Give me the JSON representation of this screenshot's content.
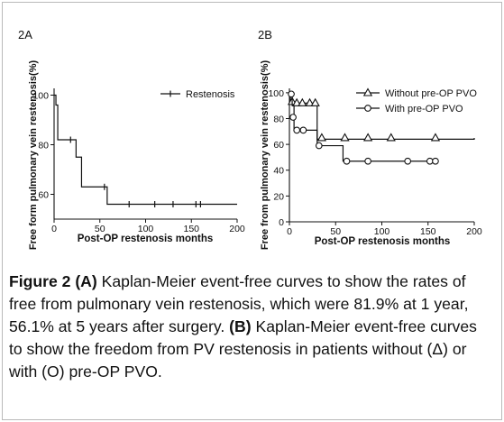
{
  "chart_data": [
    {
      "type": "line",
      "panel_label": "2A",
      "xlabel": "Post-OP restenosis months",
      "ylabel": "Free form pulmonary vein restenosis(%)",
      "xlim": [
        0,
        200
      ],
      "ylim": [
        50,
        102
      ],
      "xticks": [
        "0",
        "50",
        "100",
        "150",
        "200"
      ],
      "yticks": [
        "60",
        "80",
        "100"
      ],
      "legend_position": "top-right",
      "series": [
        {
          "name": "Restenosis",
          "marker": "tick",
          "steps": [
            [
              0,
              100
            ],
            [
              2,
              96
            ],
            [
              4,
              82
            ],
            [
              24,
              75
            ],
            [
              30,
              63
            ],
            [
              58,
              56
            ],
            [
              200,
              56
            ]
          ],
          "censored": [
            [
              18,
              82
            ],
            [
              55,
              63
            ],
            [
              82,
              56
            ],
            [
              110,
              56
            ],
            [
              130,
              56
            ],
            [
              155,
              56
            ],
            [
              160,
              56
            ]
          ]
        }
      ]
    },
    {
      "type": "line",
      "panel_label": "2B",
      "xlabel": "Post-OP restenosis months",
      "ylabel": "Free from pulmonary vein restenosis(%)",
      "xlim": [
        0,
        200
      ],
      "ylim": [
        0,
        102
      ],
      "xticks": [
        "0",
        "50",
        "100",
        "150",
        "200"
      ],
      "yticks": [
        "0",
        "20",
        "40",
        "60",
        "80",
        "100"
      ],
      "legend_position": "top-right",
      "series": [
        {
          "name": "Without pre-OP PVO",
          "marker": "triangle",
          "steps": [
            [
              0,
              100
            ],
            [
              1,
              92
            ],
            [
              30,
              64
            ],
            [
              200,
              65
            ]
          ],
          "censored": [
            [
              3,
              93
            ],
            [
              8,
              92
            ],
            [
              14,
              92
            ],
            [
              22,
              92
            ],
            [
              28,
              92
            ],
            [
              35,
              65
            ],
            [
              60,
              65
            ],
            [
              85,
              65
            ],
            [
              110,
              65
            ],
            [
              158,
              65
            ]
          ]
        },
        {
          "name": "With pre-OP PVO",
          "marker": "circle",
          "steps": [
            [
              0,
              100
            ],
            [
              3,
              90
            ],
            [
              5,
              71
            ],
            [
              30,
              59
            ],
            [
              58,
              47
            ],
            [
              160,
              47
            ]
          ],
          "censored": [
            [
              2,
              99
            ],
            [
              4,
              81
            ],
            [
              8,
              71
            ],
            [
              15,
              71
            ],
            [
              32,
              59
            ],
            [
              62,
              47
            ],
            [
              85,
              47
            ],
            [
              128,
              47
            ],
            [
              152,
              47
            ],
            [
              158,
              47
            ]
          ]
        }
      ]
    }
  ],
  "caption": {
    "a_label": "Figure 2 (A)",
    "a_text": " Kaplan-Meier event-free curves to show the rates of free from pulmonary vein restenosis, which were 81.9% at 1 year, 56.1% at 5 years after surgery. ",
    "b_label": "(B)",
    "b_text": " Kaplan-Meier event-free curves to show the freedom from PV restenosis in patients without (Δ) or with (O) pre-OP PVO."
  },
  "colors": {
    "line": "#111111",
    "frame": "#b9b9b9"
  }
}
